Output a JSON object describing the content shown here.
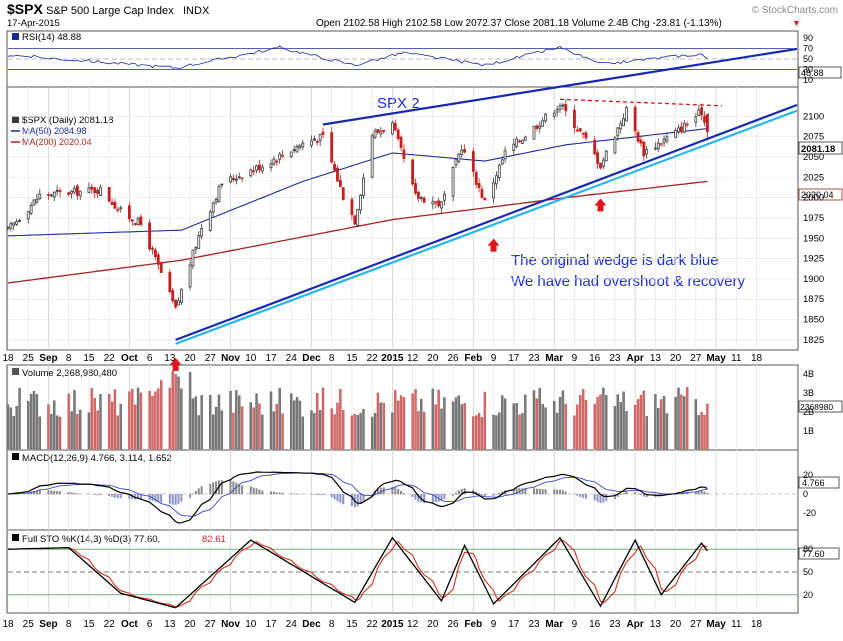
{
  "header": {
    "ticker": "$SPX",
    "name": "S&P 500 Large Cap Index",
    "exchange": "INDX",
    "date": "17-Apr-2015",
    "ohlc_line": "Open 2102.58  High 2102.58  Low 2072.37  Close 2081.18  Volume 2.4B  Chg -23.81 (-1.13%)",
    "down_marker": "▼",
    "watermark": "© StockCharts.com"
  },
  "colors": {
    "up": "#3a3a3a",
    "down": "#c61f1f",
    "ma50": "#1c2c9a",
    "ma200": "#a32424",
    "wedge_dark": "#1428b4",
    "wedge_light": "#27b6ea",
    "annotation": "#1a2cd0",
    "rsi_line": "#1a2a9a",
    "vol_up": "#7d7d7d",
    "vol_down": "#d86a6a"
  },
  "rsi_panel": {
    "label": "RSI(14) 48.88",
    "last": "48.88",
    "ticks": [
      "90",
      "70",
      "50",
      "30",
      "10"
    ],
    "levels": [
      90,
      70,
      50,
      30,
      10
    ]
  },
  "price_panel": {
    "legend": [
      "$SPX (Daily) 2081.18",
      "MA(50) 2084.98",
      "MA(200) 2020.04"
    ],
    "annotation_title": "SPX 2",
    "annotation_lines": [
      "The original wedge is dark blue",
      "We have had overshoot & recovery"
    ],
    "last_price": "2081.18",
    "ma200_value": "2020.04",
    "y_ticks": [
      "2100",
      "2075",
      "2050",
      "2025",
      "2000",
      "1975",
      "1950",
      "1925",
      "1900",
      "1875",
      "1850",
      "1825"
    ]
  },
  "x_axis": {
    "labels": [
      "18",
      "25",
      "Sep",
      "8",
      "15",
      "22",
      "Oct",
      "6",
      "13",
      "20",
      "27",
      "Nov",
      "10",
      "17",
      "24",
      "Dec",
      "8",
      "15",
      "22",
      "2015",
      "12",
      "20",
      "26",
      "Feb",
      "9",
      "17",
      "23",
      "Mar",
      "9",
      "16",
      "23",
      "Apr",
      "13",
      "20",
      "27",
      "May",
      "11",
      "18"
    ],
    "bold_labels": [
      "Sep",
      "Oct",
      "Nov",
      "Dec",
      "2015",
      "Feb",
      "Mar",
      "Apr",
      "May"
    ]
  },
  "volume_panel": {
    "label": "Volume 2,368,980,480",
    "last": "2368980",
    "ticks": [
      "4B",
      "3B",
      "2B",
      "1B"
    ]
  },
  "macd_panel": {
    "label": "MACD(12,26,9) 4.766, 3.114, 1.652",
    "last": "4.766",
    "ticks": [
      "20",
      "0",
      "-20"
    ]
  },
  "sto_panel": {
    "label": "Full STO %K(14,3) %D(3) 77.60,",
    "label_d": "82.61",
    "last": "77.60",
    "ticks": [
      "80",
      "50",
      "20"
    ]
  },
  "chart_data": {
    "type": "candlestick",
    "title": "$SPX S&P 500 Large Cap Index INDX",
    "period": "Daily",
    "x_range": [
      "2014-08-18",
      "2015-05-18"
    ],
    "y_range": [
      1815,
      2130
    ],
    "last": {
      "open": 2102.58,
      "high": 2102.58,
      "low": 2072.37,
      "close": 2081.18,
      "volume": 2368980480,
      "change": -23.81,
      "change_pct": -1.13
    },
    "price_path": [
      [
        "2014-08-18",
        1960
      ],
      [
        "2014-08-29",
        2003
      ],
      [
        "2014-09-19",
        2010
      ],
      [
        "2014-09-26",
        1983
      ],
      [
        "2014-10-03",
        1967
      ],
      [
        "2014-10-10",
        1907
      ],
      [
        "2014-10-15",
        1862
      ],
      [
        "2014-10-17",
        1886
      ],
      [
        "2014-10-24",
        1964
      ],
      [
        "2014-10-31",
        2018
      ],
      [
        "2014-11-14",
        2040
      ],
      [
        "2014-11-28",
        2067
      ],
      [
        "2014-12-05",
        2075
      ],
      [
        "2014-12-12",
        2002
      ],
      [
        "2014-12-16",
        1972
      ],
      [
        "2014-12-22",
        2078
      ],
      [
        "2014-12-29",
        2090
      ],
      [
        "2015-01-06",
        2002
      ],
      [
        "2015-01-15",
        1992
      ],
      [
        "2015-01-22",
        2063
      ],
      [
        "2015-01-30",
        1995
      ],
      [
        "2015-02-06",
        2055
      ],
      [
        "2015-02-25",
        2115
      ],
      [
        "2015-03-06",
        2071
      ],
      [
        "2015-03-11",
        2040
      ],
      [
        "2015-03-20",
        2108
      ],
      [
        "2015-03-26",
        2056
      ],
      [
        "2015-04-06",
        2080
      ],
      [
        "2015-04-15",
        2106
      ],
      [
        "2015-04-17",
        2081
      ]
    ],
    "ma50": [
      [
        "2014-08-18",
        1953
      ],
      [
        "2014-10-17",
        1960
      ],
      [
        "2014-11-28",
        2020
      ],
      [
        "2014-12-29",
        2055
      ],
      [
        "2015-01-30",
        2045
      ],
      [
        "2015-02-27",
        2065
      ],
      [
        "2015-04-17",
        2085
      ]
    ],
    "ma200": [
      [
        "2014-08-18",
        1895
      ],
      [
        "2014-10-17",
        1923
      ],
      [
        "2014-12-29",
        1973
      ],
      [
        "2015-02-27",
        2000
      ],
      [
        "2015-04-17",
        2020
      ]
    ],
    "wedge_dark_lower": [
      [
        "2014-10-15",
        1825
      ],
      [
        "2015-05-18",
        2114
      ]
    ],
    "wedge_dark_upper": [
      [
        "2014-12-05",
        2090
      ],
      [
        "2015-05-18",
        2183
      ]
    ],
    "wedge_light": [
      [
        "2014-10-15",
        1820
      ],
      [
        "2015-05-18",
        2107
      ]
    ],
    "red_dashed_top": [
      [
        "2015-02-25",
        2121
      ],
      [
        "2015-04-22",
        2113
      ]
    ],
    "arrows_at": [
      "2014-10-15",
      "2015-02-02",
      "2015-03-11"
    ],
    "rsi_path": [
      [
        "2014-08-18",
        58
      ],
      [
        "2014-10-15",
        33
      ],
      [
        "2014-11-20",
        72
      ],
      [
        "2014-12-16",
        38
      ],
      [
        "2015-01-02",
        62
      ],
      [
        "2015-01-30",
        38
      ],
      [
        "2015-02-25",
        72
      ],
      [
        "2015-03-11",
        40
      ],
      [
        "2015-04-15",
        60
      ],
      [
        "2015-04-17",
        48.88
      ]
    ],
    "sto_k_path": [
      [
        "2014-08-18",
        80
      ],
      [
        "2014-09-08",
        82
      ],
      [
        "2014-09-26",
        22
      ],
      [
        "2014-10-15",
        3
      ],
      [
        "2014-11-10",
        92
      ],
      [
        "2014-12-16",
        10
      ],
      [
        "2014-12-29",
        95
      ],
      [
        "2015-01-15",
        12
      ],
      [
        "2015-01-23",
        85
      ],
      [
        "2015-02-02",
        8
      ],
      [
        "2015-02-25",
        95
      ],
      [
        "2015-03-11",
        5
      ],
      [
        "2015-03-23",
        92
      ],
      [
        "2015-04-01",
        20
      ],
      [
        "2015-04-15",
        88
      ],
      [
        "2015-04-17",
        77.6
      ]
    ]
  }
}
